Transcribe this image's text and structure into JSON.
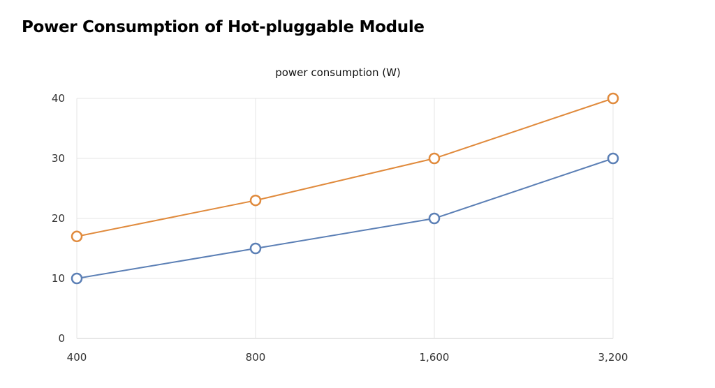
{
  "page_title": "Power Consumption of Hot-pluggable Module",
  "chart_data": {
    "type": "line",
    "title": "power consumption (W)",
    "xlabel": "",
    "ylabel": "",
    "categories": [
      "400",
      "800",
      "1,600",
      "3,200"
    ],
    "ylim": [
      0,
      40
    ],
    "yticks": [
      "0",
      "10",
      "20",
      "30",
      "40"
    ],
    "grid": true,
    "legend": "none",
    "series": [
      {
        "values": [
          17,
          23,
          30,
          40
        ],
        "color": "#e08a3c"
      },
      {
        "values": [
          10,
          15,
          20,
          30
        ],
        "color": "#5b7fb5"
      }
    ]
  }
}
